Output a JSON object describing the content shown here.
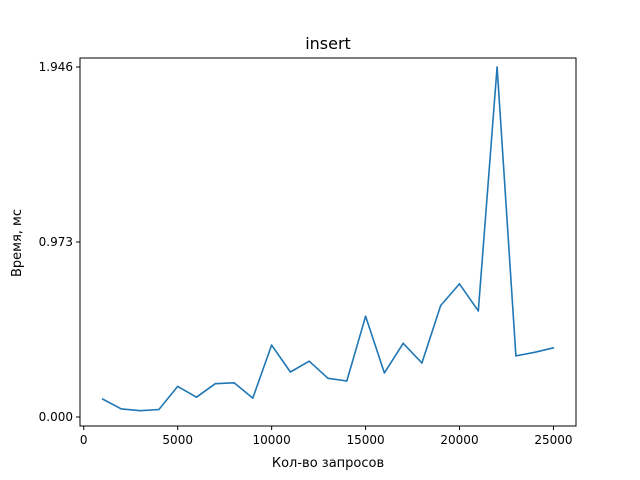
{
  "chart_data": {
    "type": "line",
    "title": "insert",
    "xlabel": "Кол-во запросов",
    "ylabel": "Время, мс",
    "xlim": [
      -200,
      26200
    ],
    "ylim": [
      -0.05,
      1.996
    ],
    "xticks": [
      0,
      5000,
      10000,
      15000,
      20000,
      25000
    ],
    "xtick_labels": [
      "0",
      "5000",
      "10000",
      "15000",
      "20000",
      "25000"
    ],
    "yticks": [
      0.0,
      0.973,
      1.946
    ],
    "ytick_labels": [
      "0.000",
      "0.973",
      "1.946"
    ],
    "grid": false,
    "line_color": "#1f77b4",
    "series": [
      {
        "x": [
          1000,
          2000,
          3000,
          4000,
          5000,
          6000,
          7000,
          8000,
          9000,
          10000,
          11000,
          12000,
          13000,
          14000,
          15000,
          16000,
          17000,
          18000,
          19000,
          20000,
          21000,
          22000,
          23000,
          24000,
          25000
        ],
        "values": [
          0.1,
          0.045,
          0.035,
          0.042,
          0.17,
          0.11,
          0.185,
          0.19,
          0.105,
          0.4,
          0.25,
          0.31,
          0.215,
          0.2,
          0.56,
          0.245,
          0.41,
          0.3,
          0.62,
          0.74,
          0.59,
          1.946,
          0.34,
          0.36,
          0.385
        ]
      }
    ]
  }
}
